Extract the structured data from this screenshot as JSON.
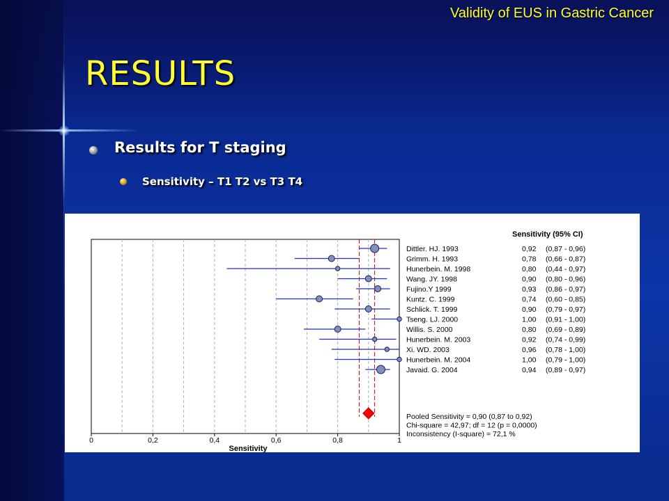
{
  "slide": {
    "header": "Validity of EUS in Gastric Cancer",
    "title": "RESULTS",
    "bullet1": "Results for T staging",
    "bullet2": "Sensitivity – T1 T2 vs  T3 T4"
  },
  "colors": {
    "title_yellow": "#ffff33",
    "ci_line": "#1f2fd6",
    "pooled_marker": "#ff0000",
    "point_fill": "#8090b8"
  },
  "chart_data": {
    "type": "forest",
    "xlabel": "Sensitivity",
    "column_header": "Sensitivity (95% CI)",
    "xlim": [
      0,
      1
    ],
    "xticks": [
      0,
      0.2,
      0.4,
      0.6,
      0.8,
      1
    ],
    "xtick_labels": [
      "0",
      "0,2",
      "0,4",
      "0,6",
      "0,8",
      "1"
    ],
    "studies": [
      {
        "name": "Dittler. HJ. 1993",
        "value": 0.92,
        "lo": 0.87,
        "hi": 0.96,
        "label_value": "0,92",
        "label_ci": "(0,87 - 0,96)",
        "weight": 3
      },
      {
        "name": "Grimm. H. 1993",
        "value": 0.78,
        "lo": 0.66,
        "hi": 0.87,
        "label_value": "0,78",
        "label_ci": "(0,66 - 0,87)",
        "weight": 2
      },
      {
        "name": "Hunerbein. M. 1998",
        "value": 0.8,
        "lo": 0.44,
        "hi": 0.97,
        "label_value": "0,80",
        "label_ci": "(0,44 - 0,97)",
        "weight": 1
      },
      {
        "name": "Wang. JY. 1998",
        "value": 0.9,
        "lo": 0.8,
        "hi": 0.96,
        "label_value": "0,90",
        "label_ci": "(0,80 - 0,96)",
        "weight": 2
      },
      {
        "name": "Fujino.Y 1999",
        "value": 0.93,
        "lo": 0.86,
        "hi": 0.97,
        "label_value": "0,93",
        "label_ci": "(0,86 - 0,97)",
        "weight": 2
      },
      {
        "name": "Kuntz. C. 1999",
        "value": 0.74,
        "lo": 0.6,
        "hi": 0.85,
        "label_value": "0,74",
        "label_ci": "(0,60 - 0,85)",
        "weight": 2
      },
      {
        "name": "Schlick. T. 1999",
        "value": 0.9,
        "lo": 0.79,
        "hi": 0.97,
        "label_value": "0,90",
        "label_ci": "(0,79 - 0,97)",
        "weight": 2
      },
      {
        "name": "Tseng. LJ. 2000",
        "value": 1.0,
        "lo": 0.91,
        "hi": 1.0,
        "label_value": "1,00",
        "label_ci": "(0,91 - 1,00)",
        "weight": 1
      },
      {
        "name": "Willis. S. 2000",
        "value": 0.8,
        "lo": 0.69,
        "hi": 0.89,
        "label_value": "0,80",
        "label_ci": "(0,69 - 0,89)",
        "weight": 2
      },
      {
        "name": "Hunerbein. M. 2003",
        "value": 0.92,
        "lo": 0.74,
        "hi": 0.99,
        "label_value": "0,92",
        "label_ci": "(0,74 - 0,99)",
        "weight": 1
      },
      {
        "name": "Xi. WD. 2003",
        "value": 0.96,
        "lo": 0.78,
        "hi": 1.0,
        "label_value": "0,96",
        "label_ci": "(0,78 - 1,00)",
        "weight": 1
      },
      {
        "name": "Hunerbein. M. 2004",
        "value": 1.0,
        "lo": 0.79,
        "hi": 1.0,
        "label_value": "1,00",
        "label_ci": "(0,79 - 1,00)",
        "weight": 1
      },
      {
        "name": "Javaid. G. 2004",
        "value": 0.94,
        "lo": 0.89,
        "hi": 0.97,
        "label_value": "0,94",
        "label_ci": "(0,89 - 0,97)",
        "weight": 3
      }
    ],
    "pooled": {
      "value": 0.9,
      "lo": 0.87,
      "hi": 0.92
    },
    "summary_lines": [
      "Pooled Sensitivity = 0,90 (0,87 to 0,92)",
      "Chi-square = 42,97; df =  12 (p = 0,0000)",
      "Inconsistency (I-square) = 72,1 %"
    ],
    "grid": "vertical-dashed"
  }
}
